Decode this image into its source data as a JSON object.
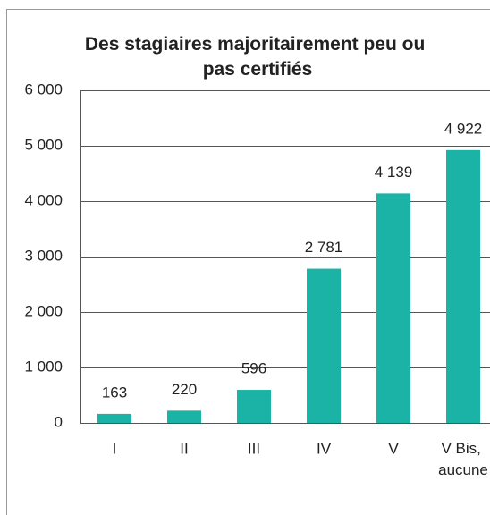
{
  "chart_data": {
    "type": "bar",
    "title": "Des stagiaires majoritairement peu ou pas certifiés",
    "categories": [
      "I",
      "II",
      "III",
      "IV",
      "V",
      "V Bis, aucune"
    ],
    "values": [
      163,
      220,
      596,
      2781,
      4139,
      4922
    ],
    "value_labels": [
      "163",
      "220",
      "596",
      "2 781",
      "4 139",
      "4 922"
    ],
    "color": "#1ab3a6",
    "ylim": [
      0,
      6000
    ],
    "yticks": [
      {
        "value": 0,
        "label": "0"
      },
      {
        "value": 1000,
        "label": "1 000"
      },
      {
        "value": 2000,
        "label": "2 000"
      },
      {
        "value": 3000,
        "label": "3 000"
      },
      {
        "value": 4000,
        "label": "4 000"
      },
      {
        "value": 5000,
        "label": "5 000"
      },
      {
        "value": 6000,
        "label": "6 000"
      }
    ],
    "grid": true
  }
}
